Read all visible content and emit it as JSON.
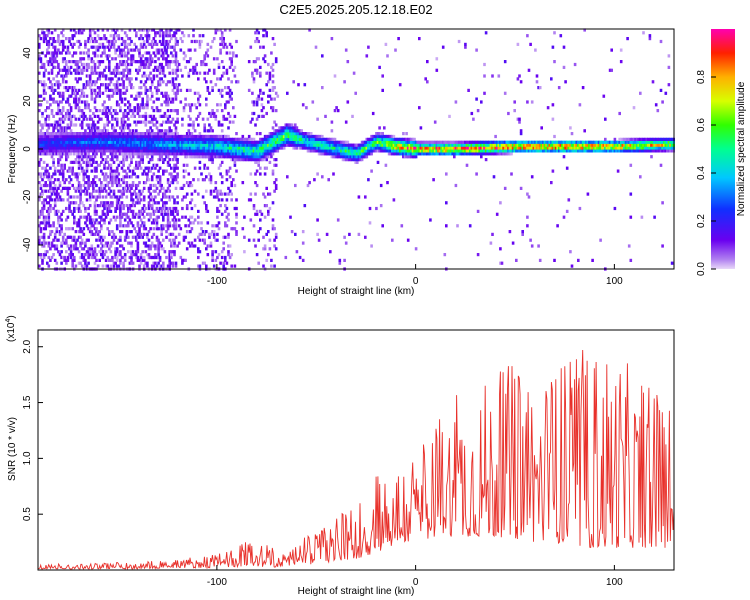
{
  "figure": {
    "title": "C2E5.2025.205.12.18.E02"
  },
  "chart_data": [
    {
      "type": "heatmap",
      "title": "C2E5.2025.205.12.18.E02",
      "xlabel": "Height of straight line (km)",
      "ylabel": "Frequency (Hz)",
      "xlim": [
        -190,
        130
      ],
      "ylim": [
        -50,
        50
      ],
      "xticks": [
        -100,
        0,
        100
      ],
      "yticks": [
        -40,
        -20,
        0,
        20,
        40
      ],
      "colorbar": {
        "label": "Normalized spectral amplitude",
        "range": [
          0,
          1
        ],
        "ticks": [
          "0.0",
          "0.2",
          "0.4",
          "0.6",
          "0.8"
        ]
      },
      "ridge": {
        "description_points_x": [
          -190,
          -160,
          -130,
          -100,
          -80,
          -65,
          -55,
          -40,
          -30,
          -20,
          -10,
          0,
          20,
          50,
          80,
          100,
          130
        ],
        "frequency_hz": [
          2,
          3,
          2,
          1,
          -1,
          6,
          3,
          0,
          -2,
          3,
          1,
          0,
          0,
          1,
          1,
          1,
          2
        ],
        "peak_amplitude": [
          0.25,
          0.3,
          0.35,
          0.45,
          0.55,
          0.6,
          0.5,
          0.5,
          0.55,
          0.6,
          0.8,
          0.9,
          0.95,
          0.9,
          0.9,
          0.85,
          0.7
        ]
      }
    },
    {
      "type": "line",
      "xlabel": "Height of straight line (km)",
      "ylabel": "SNR (10 * v/v)",
      "scale_label": "(x10",
      "scale_exp": "4",
      "scale_close": ")",
      "xlim": [
        -190,
        130
      ],
      "ylim": [
        0,
        2.15
      ],
      "xticks": [
        -100,
        0,
        100
      ],
      "yticks": [
        "0.5",
        "1.0",
        "1.5",
        "2.0"
      ],
      "color": "#e8302a",
      "envelope": {
        "x": [
          -190,
          -160,
          -140,
          -120,
          -100,
          -90,
          -82,
          -78,
          -70,
          -60,
          -50,
          -40,
          -30,
          -20,
          -15,
          -10,
          -5,
          0,
          10,
          20,
          30,
          40,
          50,
          60,
          70,
          80,
          90,
          100,
          110,
          120,
          130
        ],
        "max": [
          0.05,
          0.06,
          0.08,
          0.1,
          0.15,
          0.22,
          0.3,
          0.26,
          0.18,
          0.25,
          0.35,
          0.5,
          0.62,
          0.85,
          1.0,
          0.95,
          1.05,
          1.1,
          1.35,
          1.6,
          1.7,
          1.75,
          1.9,
          1.85,
          1.85,
          2.0,
          2.0,
          2.05,
          1.75,
          1.6,
          1.55
        ],
        "min": [
          0.01,
          0.01,
          0.01,
          0.02,
          0.02,
          0.03,
          0.04,
          0.03,
          0.02,
          0.05,
          0.05,
          0.08,
          0.1,
          0.15,
          0.2,
          0.22,
          0.25,
          0.25,
          0.3,
          0.3,
          0.3,
          0.3,
          0.28,
          0.25,
          0.25,
          0.2,
          0.2,
          0.2,
          0.2,
          0.2,
          0.2
        ]
      }
    }
  ]
}
